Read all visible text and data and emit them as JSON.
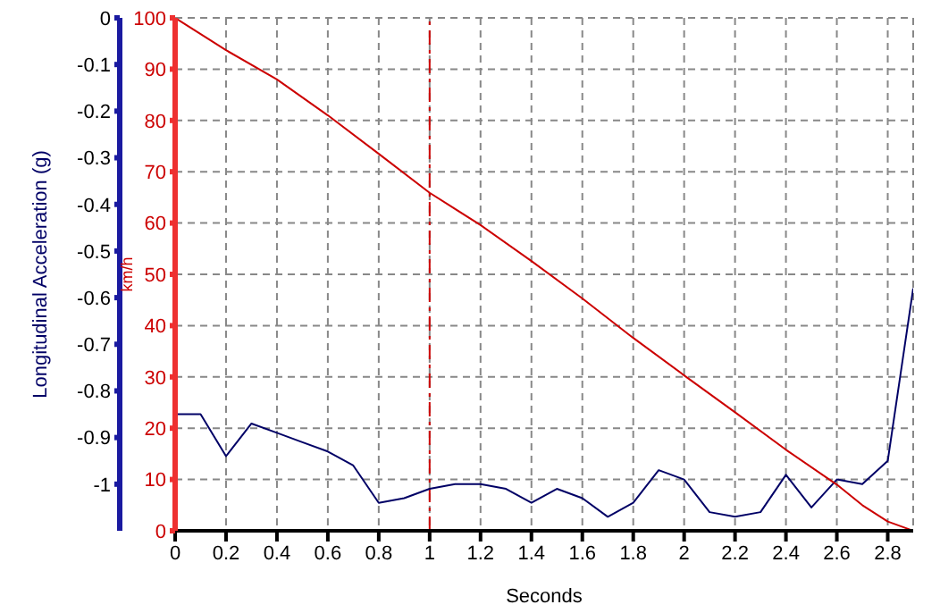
{
  "chart_data": {
    "type": "line",
    "xlabel": "Seconds",
    "ylabel": "Longitudinal Acceleration (g)",
    "y2label": "km/h",
    "xlim": [
      0,
      2.9
    ],
    "xticks": [
      0,
      0.2,
      0.4,
      0.6,
      0.8,
      1,
      1.2,
      1.4,
      1.6,
      1.8,
      2,
      2.2,
      2.4,
      2.6,
      2.8
    ],
    "ylim": [
      -1.1,
      0
    ],
    "yticks": [
      0,
      -0.1,
      -0.2,
      -0.3,
      -0.4,
      -0.5,
      -0.6,
      -0.7,
      -0.8,
      -0.9,
      -1
    ],
    "y2lim": [
      0,
      100
    ],
    "y2ticks": [
      0,
      10,
      20,
      30,
      40,
      50,
      60,
      70,
      80,
      90,
      100
    ],
    "grid": true,
    "marker": "none",
    "ref_lines": [
      {
        "axis": "x",
        "value": 1,
        "color": "#cc0000",
        "line_style": "dashed"
      }
    ],
    "series": [
      {
        "color": "#000066",
        "axis": "y",
        "x": [
          0,
          0.1,
          0.2,
          0.3,
          0.4,
          0.5,
          0.6,
          0.7,
          0.8,
          0.9,
          1,
          1.1,
          1.2,
          1.3,
          1.4,
          1.5,
          1.6,
          1.7,
          1.8,
          1.9,
          2,
          2.1,
          2.2,
          2.3,
          2.4,
          2.5,
          2.6,
          2.7,
          2.8,
          2.9
        ],
        "values": [
          -0.85,
          -0.85,
          -0.94,
          -0.87,
          -0.89,
          -0.91,
          -0.93,
          -0.96,
          -1.04,
          -1.03,
          -1.01,
          -1.0,
          -1.0,
          -1.01,
          -1.04,
          -1.01,
          -1.03,
          -1.07,
          -1.04,
          -0.97,
          -0.99,
          -1.06,
          -1.07,
          -1.06,
          -0.98,
          -1.05,
          -0.99,
          -1.0,
          -0.95,
          -0.58
        ]
      },
      {
        "color": "#cc0000",
        "axis": "y2",
        "x": [
          0,
          0.2,
          0.4,
          0.6,
          0.8,
          1,
          1.2,
          1.4,
          1.6,
          1.8,
          2,
          2.2,
          2.4,
          2.6,
          2.7,
          2.8,
          2.9
        ],
        "values": [
          100,
          93.7,
          88,
          81,
          73.5,
          65.9,
          59.6,
          52.6,
          45.3,
          37.6,
          30.3,
          23.1,
          15.8,
          9,
          5,
          1.8,
          0
        ]
      }
    ]
  }
}
